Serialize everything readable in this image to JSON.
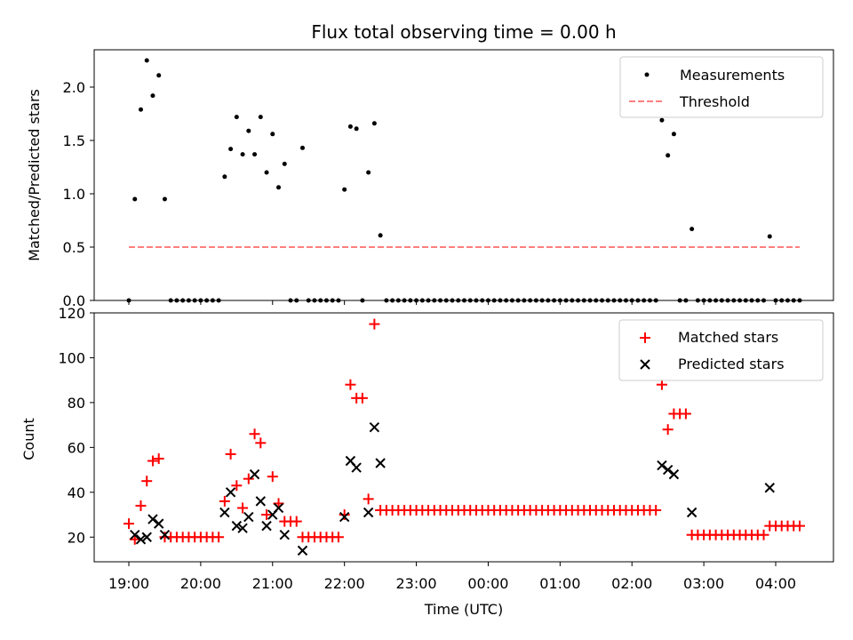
{
  "chart_data": [
    {
      "type": "scatter",
      "title": "Flux total observing time = 0.00 h",
      "xlabel": "",
      "ylabel": "Matched/Predicted stars",
      "ylim": [
        0,
        2.35
      ],
      "yticks": [
        "0.0",
        "0.5",
        "1.0",
        "1.5",
        "2.0"
      ],
      "legend": {
        "position": "top-right",
        "entries": [
          "Measurements",
          "Threshold"
        ]
      },
      "colors": {
        "measurements": "#000000",
        "threshold": "#ff7f7f"
      },
      "series": [
        {
          "name": "Measurements",
          "points": [
            [
              "19:00",
              0.0
            ],
            [
              "19:05",
              0.95
            ],
            [
              "19:10",
              1.79
            ],
            [
              "19:15",
              2.25
            ],
            [
              "19:20",
              1.92
            ],
            [
              "19:25",
              2.11
            ],
            [
              "19:30",
              0.95
            ],
            [
              "19:35",
              0.0
            ],
            [
              "19:40",
              0.0
            ],
            [
              "19:45",
              0.0
            ],
            [
              "19:50",
              0.0
            ],
            [
              "19:55",
              0.0
            ],
            [
              "20:00",
              0.0
            ],
            [
              "20:05",
              0.0
            ],
            [
              "20:10",
              0.0
            ],
            [
              "20:15",
              0.0
            ],
            [
              "20:20",
              1.16
            ],
            [
              "20:25",
              1.42
            ],
            [
              "20:30",
              1.72
            ],
            [
              "20:35",
              1.37
            ],
            [
              "20:40",
              1.59
            ],
            [
              "20:45",
              1.37
            ],
            [
              "20:50",
              1.72
            ],
            [
              "20:55",
              1.2
            ],
            [
              "21:00",
              1.56
            ],
            [
              "21:05",
              1.06
            ],
            [
              "21:10",
              1.28
            ],
            [
              "21:15",
              0.0
            ],
            [
              "21:20",
              0.0
            ],
            [
              "21:25",
              1.43
            ],
            [
              "21:30",
              0.0
            ],
            [
              "21:35",
              0.0
            ],
            [
              "21:40",
              0.0
            ],
            [
              "21:45",
              0.0
            ],
            [
              "21:50",
              0.0
            ],
            [
              "21:55",
              0.0
            ],
            [
              "22:00",
              1.04
            ],
            [
              "22:05",
              1.63
            ],
            [
              "22:10",
              1.61
            ],
            [
              "22:15",
              0.0
            ],
            [
              "22:20",
              1.2
            ],
            [
              "22:25",
              1.66
            ],
            [
              "22:30",
              0.61
            ],
            [
              "22:35",
              0.0
            ],
            [
              "22:40",
              0.0
            ],
            [
              "22:45",
              0.0
            ],
            [
              "22:50",
              0.0
            ],
            [
              "22:55",
              0.0
            ],
            [
              "23:00",
              0.0
            ],
            [
              "23:05",
              0.0
            ],
            [
              "23:10",
              0.0
            ],
            [
              "23:15",
              0.0
            ],
            [
              "23:20",
              0.0
            ],
            [
              "23:25",
              0.0
            ],
            [
              "23:30",
              0.0
            ],
            [
              "23:35",
              0.0
            ],
            [
              "23:40",
              0.0
            ],
            [
              "23:45",
              0.0
            ],
            [
              "23:50",
              0.0
            ],
            [
              "23:55",
              0.0
            ],
            [
              "00:00",
              0.0
            ],
            [
              "00:05",
              0.0
            ],
            [
              "00:10",
              0.0
            ],
            [
              "00:15",
              0.0
            ],
            [
              "00:20",
              0.0
            ],
            [
              "00:25",
              0.0
            ],
            [
              "00:30",
              0.0
            ],
            [
              "00:35",
              0.0
            ],
            [
              "00:40",
              0.0
            ],
            [
              "00:45",
              0.0
            ],
            [
              "00:50",
              0.0
            ],
            [
              "00:55",
              0.0
            ],
            [
              "01:00",
              0.0
            ],
            [
              "01:05",
              0.0
            ],
            [
              "01:10",
              0.0
            ],
            [
              "01:15",
              0.0
            ],
            [
              "01:20",
              0.0
            ],
            [
              "01:25",
              0.0
            ],
            [
              "01:30",
              0.0
            ],
            [
              "01:35",
              0.0
            ],
            [
              "01:40",
              0.0
            ],
            [
              "01:45",
              0.0
            ],
            [
              "01:50",
              0.0
            ],
            [
              "01:55",
              0.0
            ],
            [
              "02:00",
              0.0
            ],
            [
              "02:05",
              0.0
            ],
            [
              "02:10",
              0.0
            ],
            [
              "02:15",
              0.0
            ],
            [
              "02:20",
              0.0
            ],
            [
              "02:25",
              1.69
            ],
            [
              "02:30",
              1.36
            ],
            [
              "02:35",
              1.56
            ],
            [
              "02:40",
              0.0
            ],
            [
              "02:45",
              0.0
            ],
            [
              "02:50",
              0.67
            ],
            [
              "02:55",
              0.0
            ],
            [
              "03:00",
              0.0
            ],
            [
              "03:05",
              0.0
            ],
            [
              "03:10",
              0.0
            ],
            [
              "03:15",
              0.0
            ],
            [
              "03:20",
              0.0
            ],
            [
              "03:25",
              0.0
            ],
            [
              "03:30",
              0.0
            ],
            [
              "03:35",
              0.0
            ],
            [
              "03:40",
              0.0
            ],
            [
              "03:45",
              0.0
            ],
            [
              "03:50",
              0.0
            ],
            [
              "03:55",
              0.6
            ],
            [
              "04:00",
              0.0
            ],
            [
              "04:05",
              0.0
            ],
            [
              "04:10",
              0.0
            ],
            [
              "04:15",
              0.0
            ],
            [
              "04:20",
              0.0
            ]
          ]
        },
        {
          "name": "Threshold",
          "style": "dashed",
          "points": [
            [
              "19:00",
              0.5
            ],
            [
              "04:20",
              0.5
            ]
          ]
        }
      ]
    },
    {
      "type": "scatter",
      "title": "",
      "xlabel": "Time (UTC)",
      "ylabel": "Count",
      "ylim": [
        9,
        120
      ],
      "yticks": [
        "20",
        "40",
        "60",
        "80",
        "100",
        "120"
      ],
      "xticks": [
        "19:00",
        "20:00",
        "21:00",
        "22:00",
        "23:00",
        "00:00",
        "01:00",
        "02:00",
        "03:00",
        "04:00"
      ],
      "legend": {
        "position": "top-right",
        "entries": [
          "Matched stars",
          "Predicted stars"
        ]
      },
      "colors": {
        "matched": "#ff0000",
        "predicted": "#000000"
      },
      "series": [
        {
          "name": "Matched stars",
          "marker": "plus",
          "points": [
            [
              "19:00",
              26
            ],
            [
              "19:05",
              19
            ],
            [
              "19:10",
              34
            ],
            [
              "19:15",
              45
            ],
            [
              "19:20",
              54
            ],
            [
              "19:25",
              55
            ],
            [
              "19:30",
              20
            ],
            [
              "19:35",
              20
            ],
            [
              "19:40",
              20
            ],
            [
              "19:45",
              20
            ],
            [
              "19:50",
              20
            ],
            [
              "19:55",
              20
            ],
            [
              "20:00",
              20
            ],
            [
              "20:05",
              20
            ],
            [
              "20:10",
              20
            ],
            [
              "20:15",
              20
            ],
            [
              "20:20",
              36
            ],
            [
              "20:25",
              57
            ],
            [
              "20:30",
              43
            ],
            [
              "20:35",
              33
            ],
            [
              "20:40",
              46
            ],
            [
              "20:45",
              66
            ],
            [
              "20:50",
              62
            ],
            [
              "20:55",
              30
            ],
            [
              "21:00",
              47
            ],
            [
              "21:05",
              35
            ],
            [
              "21:10",
              27
            ],
            [
              "21:15",
              27
            ],
            [
              "21:20",
              27
            ],
            [
              "21:25",
              20
            ],
            [
              "21:30",
              20
            ],
            [
              "21:35",
              20
            ],
            [
              "21:40",
              20
            ],
            [
              "21:45",
              20
            ],
            [
              "21:50",
              20
            ],
            [
              "21:55",
              20
            ],
            [
              "22:00",
              30
            ],
            [
              "22:05",
              88
            ],
            [
              "22:10",
              82
            ],
            [
              "22:15",
              82
            ],
            [
              "22:20",
              37
            ],
            [
              "22:25",
              115
            ],
            [
              "22:30",
              32
            ],
            [
              "22:35",
              32
            ],
            [
              "22:40",
              32
            ],
            [
              "22:45",
              32
            ],
            [
              "22:50",
              32
            ],
            [
              "22:55",
              32
            ],
            [
              "23:00",
              32
            ],
            [
              "23:05",
              32
            ],
            [
              "23:10",
              32
            ],
            [
              "23:15",
              32
            ],
            [
              "23:20",
              32
            ],
            [
              "23:25",
              32
            ],
            [
              "23:30",
              32
            ],
            [
              "23:35",
              32
            ],
            [
              "23:40",
              32
            ],
            [
              "23:45",
              32
            ],
            [
              "23:50",
              32
            ],
            [
              "23:55",
              32
            ],
            [
              "00:00",
              32
            ],
            [
              "00:05",
              32
            ],
            [
              "00:10",
              32
            ],
            [
              "00:15",
              32
            ],
            [
              "00:20",
              32
            ],
            [
              "00:25",
              32
            ],
            [
              "00:30",
              32
            ],
            [
              "00:35",
              32
            ],
            [
              "00:40",
              32
            ],
            [
              "00:45",
              32
            ],
            [
              "00:50",
              32
            ],
            [
              "00:55",
              32
            ],
            [
              "01:00",
              32
            ],
            [
              "01:05",
              32
            ],
            [
              "01:10",
              32
            ],
            [
              "01:15",
              32
            ],
            [
              "01:20",
              32
            ],
            [
              "01:25",
              32
            ],
            [
              "01:30",
              32
            ],
            [
              "01:35",
              32
            ],
            [
              "01:40",
              32
            ],
            [
              "01:45",
              32
            ],
            [
              "01:50",
              32
            ],
            [
              "01:55",
              32
            ],
            [
              "02:00",
              32
            ],
            [
              "02:05",
              32
            ],
            [
              "02:10",
              32
            ],
            [
              "02:15",
              32
            ],
            [
              "02:20",
              32
            ],
            [
              "02:25",
              88
            ],
            [
              "02:30",
              68
            ],
            [
              "02:35",
              75
            ],
            [
              "02:40",
              75
            ],
            [
              "02:45",
              75
            ],
            [
              "02:50",
              21
            ],
            [
              "02:55",
              21
            ],
            [
              "03:00",
              21
            ],
            [
              "03:05",
              21
            ],
            [
              "03:10",
              21
            ],
            [
              "03:15",
              21
            ],
            [
              "03:20",
              21
            ],
            [
              "03:25",
              21
            ],
            [
              "03:30",
              21
            ],
            [
              "03:35",
              21
            ],
            [
              "03:40",
              21
            ],
            [
              "03:45",
              21
            ],
            [
              "03:50",
              21
            ],
            [
              "03:55",
              25
            ],
            [
              "04:00",
              25
            ],
            [
              "04:05",
              25
            ],
            [
              "04:10",
              25
            ],
            [
              "04:15",
              25
            ],
            [
              "04:20",
              25
            ]
          ]
        },
        {
          "name": "Predicted stars",
          "marker": "x",
          "points": [
            [
              "19:05",
              21
            ],
            [
              "19:10",
              19
            ],
            [
              "19:15",
              20
            ],
            [
              "19:20",
              28
            ],
            [
              "19:25",
              26
            ],
            [
              "19:30",
              21
            ],
            [
              "20:20",
              31
            ],
            [
              "20:25",
              40
            ],
            [
              "20:30",
              25
            ],
            [
              "20:35",
              24
            ],
            [
              "20:40",
              29
            ],
            [
              "20:45",
              48
            ],
            [
              "20:50",
              36
            ],
            [
              "20:55",
              25
            ],
            [
              "21:00",
              30
            ],
            [
              "21:05",
              33
            ],
            [
              "21:10",
              21
            ],
            [
              "21:25",
              14
            ],
            [
              "22:00",
              29
            ],
            [
              "22:05",
              54
            ],
            [
              "22:10",
              51
            ],
            [
              "22:20",
              31
            ],
            [
              "22:25",
              69
            ],
            [
              "22:30",
              53
            ],
            [
              "02:25",
              52
            ],
            [
              "02:30",
              50
            ],
            [
              "02:35",
              48
            ],
            [
              "02:50",
              31
            ],
            [
              "03:55",
              42
            ]
          ]
        }
      ]
    }
  ]
}
